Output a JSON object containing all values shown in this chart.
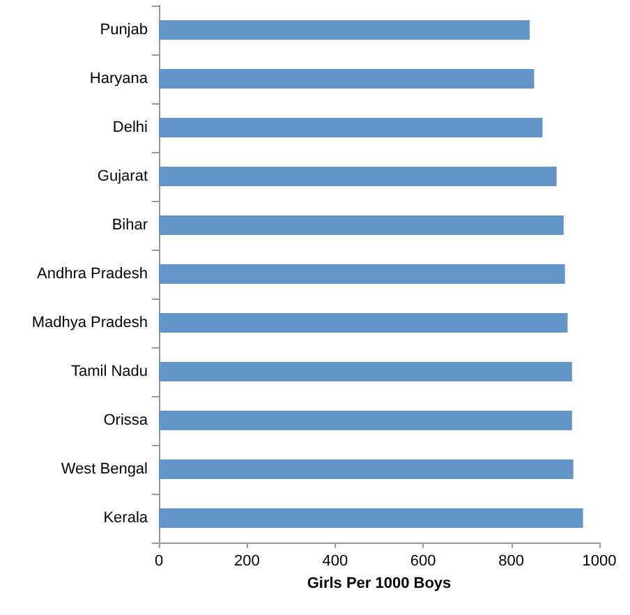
{
  "chart_data": {
    "type": "bar",
    "orientation": "horizontal",
    "xlabel": "Girls Per 1000 Boys",
    "categories": [
      "Punjab",
      "Haryana",
      "Delhi",
      "Gujarat",
      "Bihar",
      "Andhra Pradesh",
      "Madhya Pradesh",
      "Tamil Nadu",
      "Orissa",
      "West Bengal",
      "Kerala"
    ],
    "values": [
      842,
      852,
      871,
      903,
      919,
      922,
      928,
      938,
      938,
      941,
      963
    ],
    "color": "#6495c8",
    "xlim": [
      0,
      1000
    ],
    "xticks": [
      0,
      200,
      400,
      600,
      800,
      1000
    ],
    "grid": false
  }
}
